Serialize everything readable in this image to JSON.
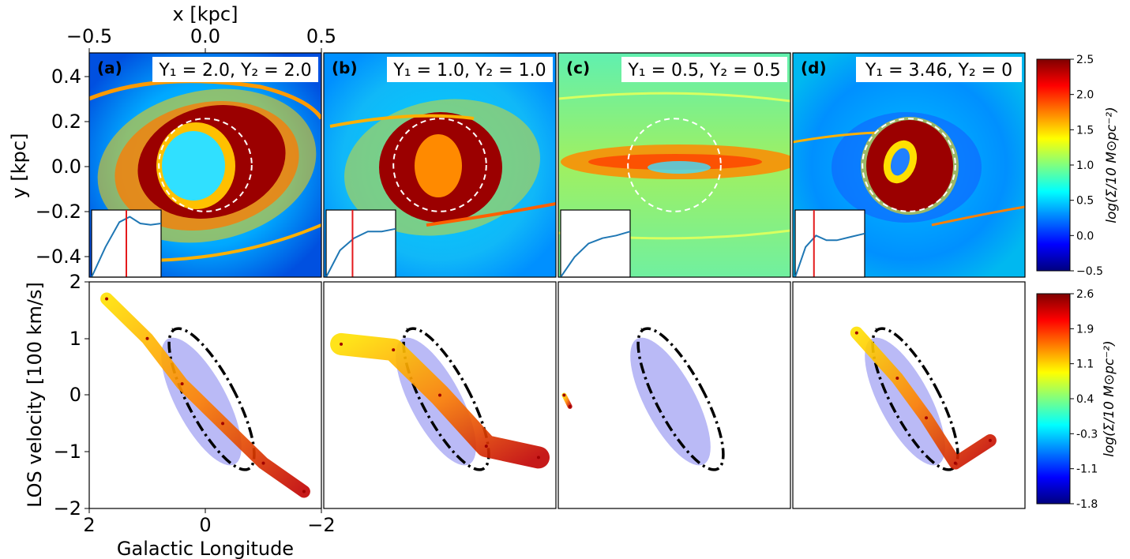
{
  "colors": {
    "panel_label": "#e41a1c",
    "red_line": "#e41a1c",
    "inset_curve": "#1f77b4",
    "ellipse_fill": "#8c8cf0",
    "ellipse_line": "#000000",
    "circle": "#ffffff"
  },
  "top_axes": {
    "xlabel": "x [kpc]",
    "ylabel": "y [kpc]",
    "xticks": [
      "−0.5",
      "0.0",
      "0.5"
    ],
    "yticks": [
      "0.4",
      "0.2",
      "0.0",
      "−0.2",
      "−0.4"
    ],
    "xlim": [
      -0.5,
      0.5
    ],
    "ylim": [
      -0.48,
      0.48
    ]
  },
  "bottom_axes": {
    "xlabel": "Galactic Longitude",
    "ylabel": "LOS velocity [100 km/s]",
    "xticks": [
      "2",
      "0",
      "−2"
    ],
    "yticks": [
      "2",
      "1",
      "0",
      "−1",
      "−2"
    ],
    "xlim": [
      2,
      -2
    ],
    "ylim": [
      -2,
      2
    ]
  },
  "colorbar_top": {
    "label": "log(Σ/10 M⊙pc⁻²)",
    "ticks": [
      "2.5",
      "2.0",
      "1.5",
      "1.0",
      "0.5",
      "0.0",
      "−0.5"
    ],
    "range": [
      -0.5,
      2.5
    ]
  },
  "colorbar_bottom": {
    "label": "log(Σ/10 M⊙pc⁻²)",
    "ticks": [
      "2.6",
      "1.9",
      "1.1",
      "0.4",
      "-0.3",
      "-1.1",
      "-1.8"
    ],
    "range": [
      -1.8,
      2.6
    ]
  },
  "panels": [
    {
      "tag": "(a)",
      "params": "Υ₁ = 2.0, Υ₂ = 2.0"
    },
    {
      "tag": "(b)",
      "params": "Υ₁ = 1.0, Υ₂ = 1.0"
    },
    {
      "tag": "(c)",
      "params": "Υ₁ = 0.5, Υ₂ = 0.5"
    },
    {
      "tag": "(d)",
      "params": "Υ₁ = 3.46, Υ₂ = 0"
    }
  ],
  "chart_data": [
    {
      "type": "heatmap",
      "panels": [
        "(a)",
        "(b)",
        "(c)",
        "(d)"
      ],
      "x_unit": "kpc",
      "y_unit": "kpc",
      "xlim": [
        -0.5,
        0.5
      ],
      "ylim": [
        -0.48,
        0.48
      ],
      "circle_radius_kpc": 0.2,
      "inset_red_line_present": [
        true,
        true,
        false,
        true
      ]
    },
    {
      "type": "scatter",
      "panels": [
        "(a)",
        "(b)",
        "(c)",
        "(d)"
      ],
      "xlim": [
        2,
        -2
      ],
      "ylim": [
        -2,
        2
      ],
      "ridge_lines": [
        {
          "panel": "(a)",
          "x": [
            1.7,
            1.0,
            0.4,
            -0.3,
            -1.0,
            -1.7
          ],
          "y": [
            1.7,
            1.0,
            0.2,
            -0.5,
            -1.2,
            -1.7
          ]
        },
        {
          "panel": "(b)",
          "x": [
            1.7,
            0.8,
            0.0,
            -0.8,
            -1.7
          ],
          "y": [
            0.9,
            0.8,
            0.0,
            -0.9,
            -1.1
          ]
        },
        {
          "panel": "(c)",
          "x": [
            1.9,
            1.8
          ],
          "y": [
            0.0,
            -0.2
          ]
        },
        {
          "panel": "(d)",
          "x": [
            0.9,
            0.2,
            -0.3,
            -0.8,
            -1.4
          ],
          "y": [
            1.1,
            0.3,
            -0.4,
            -1.2,
            -0.8
          ]
        }
      ]
    }
  ]
}
